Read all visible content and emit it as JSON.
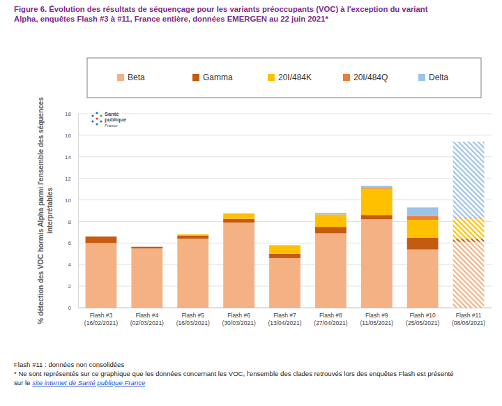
{
  "chart_data": {
    "type": "bar",
    "title": "Figure 6. Évolution des résultats de séquençage pour les variants préoccupants (VOC) à l'exception du variant\nAlpha, enquêtes Flash #3 à #11, France entière, données EMERGEN au 22 juin 2021*",
    "y_label": "% détection des VOC hormis Alpha parmi l'ensemble des séquences\ninterprétables",
    "categories": [
      "Flash #3\n(16/02/2021)",
      "Flash #4\n(02/03/2021)",
      "Flash #5\n(16/03/2021)",
      "Flash #6\n(30/03/2021)",
      "Flash #7\n(13/04/2021)",
      "Flash #8\n(27/04/2021)",
      "Flash #9\n(11/05/2021)",
      "Flash #10\n(25/05/2021)",
      "Flash #11\n(08/06/2021)"
    ],
    "series": [
      {
        "name": "Beta",
        "color": "#f4b183",
        "values": [
          6.0,
          5.5,
          6.4,
          7.9,
          4.6,
          6.9,
          8.2,
          5.4,
          6.1
        ]
      },
      {
        "name": "Gamma",
        "color": "#c55a11",
        "values": [
          0.6,
          0.15,
          0.3,
          0.35,
          0.4,
          0.6,
          0.4,
          1.1,
          0.3
        ]
      },
      {
        "name": "20I/484K",
        "color": "#ffc000",
        "values": [
          0,
          0,
          0.1,
          0.5,
          0.8,
          1.15,
          2.45,
          1.65,
          1.85
        ]
      },
      {
        "name": "20I/484Q",
        "color": "#ed7d31",
        "values": [
          0,
          0,
          0,
          0,
          0,
          0,
          0.1,
          0.35,
          0.15
        ]
      },
      {
        "name": "Delta",
        "color": "#9dc3e6",
        "values": [
          0,
          0,
          0,
          0,
          0,
          0.15,
          0.15,
          0.8,
          7.0
        ]
      }
    ],
    "stacked": true,
    "ylim": [
      0,
      18
    ],
    "yticks": [
      0,
      2,
      4,
      6,
      8,
      10,
      12,
      14,
      16,
      18
    ],
    "grid": true,
    "legend": "top",
    "logo": [
      "Santé",
      "publique",
      "France"
    ],
    "annotations": [
      "Flash #11 : données non consolidées",
      "* Ne sont représentés sur ce graphique que les données concernant les VOC, l'ensemble des clades retrouvés lors des enquêtes Flash est présenté",
      "sur le ",
      "site internet de Santé publique France"
    ]
  }
}
